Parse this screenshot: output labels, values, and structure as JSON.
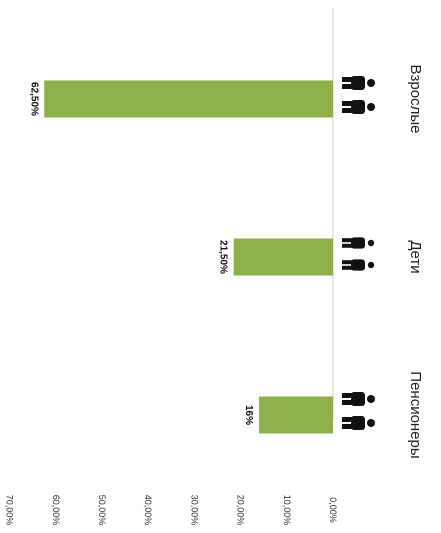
{
  "chart_data": {
    "type": "bar",
    "orientation": "horizontal",
    "categories": [
      "Взрослые",
      "Дети",
      "Пенсионеры"
    ],
    "values": [
      62.5,
      21.5,
      16
    ],
    "data_labels": [
      "62,50%",
      "21,50%",
      "16%"
    ],
    "title": "",
    "xlabel": "",
    "ylabel": "",
    "xlim": [
      0,
      70
    ],
    "ticks": [
      0,
      10,
      20,
      30,
      40,
      50,
      60,
      70
    ],
    "tick_labels": [
      "0,00%",
      "10,00%",
      "20,00%",
      "30,00%",
      "40,00%",
      "50,00%",
      "60,00%",
      "70,00%"
    ],
    "grid": false,
    "legend": "none",
    "colors": {
      "bar": "#8db04a",
      "icon": "#111111"
    },
    "category_icons": [
      "adults-icon",
      "children-icon",
      "seniors-icon"
    ]
  }
}
